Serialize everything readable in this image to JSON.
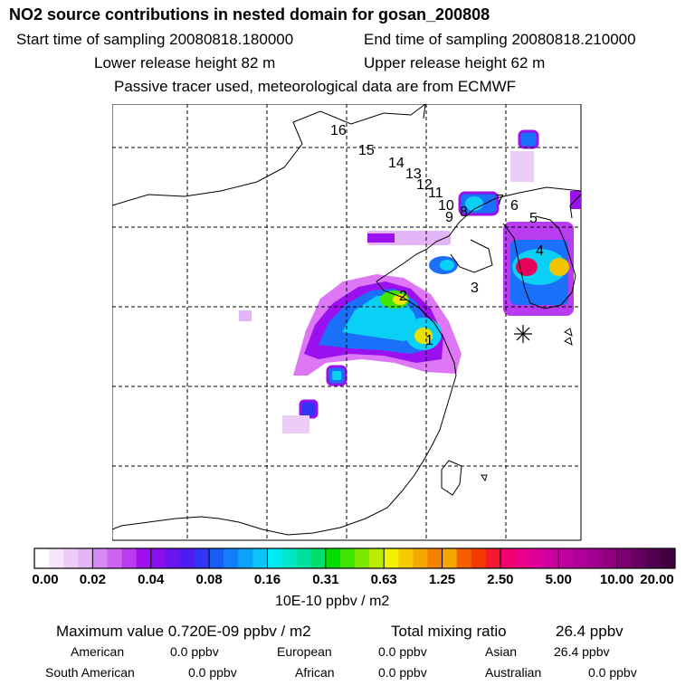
{
  "title": "NO2 source contributions in nested domain for gosan_200808",
  "header": {
    "start": "Start time of sampling 20080818.180000",
    "end": "End time of sampling 20080818.210000",
    "lower": "Lower release height   82 m",
    "upper": "Upper release height   62 m",
    "note": "Passive tracer used, meteorological data are from ECMWF"
  },
  "map": {
    "tracks": [
      "16",
      "15",
      "14",
      "13",
      "12",
      "11",
      "10",
      "9",
      "8",
      "7",
      "6",
      "5",
      "4",
      "3",
      "2",
      "1"
    ],
    "receptor": "gosan"
  },
  "colorbar": {
    "ticks": [
      "0.00",
      "0.02",
      "0.04",
      "0.08",
      "0.16",
      "0.31",
      "0.63",
      "1.25",
      "2.50",
      "5.00",
      "10.00",
      "20.00"
    ],
    "unit": "10E-10 ppbv / m2",
    "colors": [
      "#ffffff",
      "#f6e6fb",
      "#eccdf8",
      "#e3b4f6",
      "#d88af3",
      "#cc66f0",
      "#b93cf0",
      "#a010ee",
      "#8a10ee",
      "#6a14f0",
      "#4c1cf2",
      "#3036f4",
      "#1c5cf6",
      "#1080f8",
      "#0ca2f8",
      "#0ac4f8",
      "#00eaf2",
      "#00e6c8",
      "#00e29c",
      "#00de6c",
      "#00e000",
      "#40e400",
      "#7ce800",
      "#b8ec00",
      "#f2f200",
      "#f6cc00",
      "#f6a600",
      "#f68000",
      "#f6a600",
      "#f46000",
      "#f43a00",
      "#f41830",
      "#f4006e",
      "#e8008a",
      "#dc0098",
      "#cc00a0",
      "#be00a0",
      "#b0009a",
      "#a00090",
      "#8e0080",
      "#7a0070",
      "#660060",
      "#520050",
      "#400040"
    ]
  },
  "stats": {
    "max_label": "Maximum value  0.720E-09 ppbv / m2",
    "total_label": "Total mixing ratio",
    "total_value": "26.4 ppbv"
  },
  "regions": [
    {
      "name": "American",
      "value": "0.0 ppbv"
    },
    {
      "name": "European",
      "value": "0.0 ppbv"
    },
    {
      "name": "Asian",
      "value": "26.4 ppbv"
    },
    {
      "name": "South American",
      "value": "0.0 ppbv"
    },
    {
      "name": "African",
      "value": "0.0 ppbv"
    },
    {
      "name": "Australian",
      "value": "0.0 ppbv"
    }
  ]
}
